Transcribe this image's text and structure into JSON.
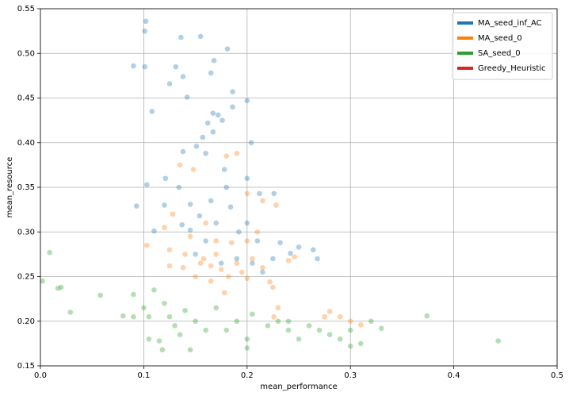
{
  "chart_data": {
    "type": "scatter",
    "x_label": "mean_performance",
    "y_label": "mean_resource",
    "xlim": [
      0,
      0.5
    ],
    "ylim": [
      0.15,
      0.55
    ],
    "xticks": [
      {
        "value": 0,
        "label": "0.0"
      },
      0.1,
      0.2,
      0.3,
      0.4,
      0.5
    ],
    "yticks": [
      0.15,
      {
        "value": 0.2,
        "label": "0.20"
      },
      0.25,
      {
        "value": 0.3,
        "label": "0.30"
      },
      0.35,
      {
        "value": 0.4,
        "label": "0.40"
      },
      0.45,
      {
        "value": 0.5,
        "label": "0.50"
      },
      0.55
    ],
    "grid": true,
    "legend": "upper right",
    "series": [
      {
        "name": "MA_seed_inf_AC",
        "color": "#1f77b4",
        "x": [
          0.102,
          0.101,
          0.136,
          0.155,
          0.181,
          0.168,
          0.09,
          0.101,
          0.131,
          0.125,
          0.138,
          0.165,
          0.186,
          0.142,
          0.108,
          0.2,
          0.167,
          0.172,
          0.186,
          0.162,
          0.176,
          0.167,
          0.151,
          0.157,
          0.204,
          0.138,
          0.16,
          0.178,
          0.121,
          0.134,
          0.103,
          0.093,
          0.2,
          0.212,
          0.226,
          0.145,
          0.165,
          0.184,
          0.12,
          0.11,
          0.154,
          0.17,
          0.192,
          0.21,
          0.232,
          0.25,
          0.264,
          0.268,
          0.242,
          0.225,
          0.205,
          0.16,
          0.145,
          0.175,
          0.19,
          0.215,
          0.137,
          0.15,
          0.2,
          0.18
        ],
        "values": [
          0.536,
          0.525,
          0.518,
          0.519,
          0.505,
          0.492,
          0.486,
          0.485,
          0.485,
          0.466,
          0.474,
          0.478,
          0.457,
          0.451,
          0.435,
          0.447,
          0.433,
          0.431,
          0.44,
          0.422,
          0.425,
          0.412,
          0.396,
          0.406,
          0.4,
          0.39,
          0.388,
          0.37,
          0.36,
          0.35,
          0.353,
          0.329,
          0.36,
          0.343,
          0.343,
          0.331,
          0.335,
          0.328,
          0.33,
          0.301,
          0.318,
          0.31,
          0.3,
          0.29,
          0.288,
          0.283,
          0.28,
          0.27,
          0.276,
          0.27,
          0.265,
          0.29,
          0.302,
          0.265,
          0.27,
          0.255,
          0.308,
          0.275,
          0.31,
          0.35
        ]
      },
      {
        "name": "MA_seed_0",
        "color": "#ff7f0e",
        "x": [
          0.135,
          0.148,
          0.18,
          0.19,
          0.2,
          0.215,
          0.228,
          0.128,
          0.16,
          0.145,
          0.17,
          0.185,
          0.2,
          0.125,
          0.103,
          0.14,
          0.158,
          0.165,
          0.175,
          0.19,
          0.205,
          0.125,
          0.138,
          0.15,
          0.165,
          0.182,
          0.2,
          0.215,
          0.222,
          0.24,
          0.246,
          0.225,
          0.155,
          0.17,
          0.195,
          0.275,
          0.28,
          0.29,
          0.3,
          0.31,
          0.226,
          0.23,
          0.12,
          0.21,
          0.178
        ],
        "values": [
          0.375,
          0.37,
          0.385,
          0.388,
          0.343,
          0.335,
          0.33,
          0.32,
          0.31,
          0.295,
          0.29,
          0.288,
          0.29,
          0.28,
          0.285,
          0.275,
          0.27,
          0.262,
          0.258,
          0.265,
          0.27,
          0.262,
          0.26,
          0.25,
          0.245,
          0.25,
          0.248,
          0.26,
          0.244,
          0.268,
          0.272,
          0.238,
          0.265,
          0.275,
          0.255,
          0.205,
          0.211,
          0.205,
          0.2,
          0.196,
          0.205,
          0.215,
          0.305,
          0.3,
          0.232
        ]
      },
      {
        "name": "SA_seed_0",
        "color": "#2ca02c",
        "x": [
          0.002,
          0.009,
          0.017,
          0.02,
          0.029,
          0.058,
          0.08,
          0.09,
          0.09,
          0.1,
          0.105,
          0.11,
          0.12,
          0.125,
          0.13,
          0.14,
          0.15,
          0.105,
          0.115,
          0.118,
          0.135,
          0.145,
          0.16,
          0.17,
          0.18,
          0.19,
          0.2,
          0.205,
          0.22,
          0.23,
          0.24,
          0.25,
          0.26,
          0.27,
          0.28,
          0.29,
          0.3,
          0.31,
          0.32,
          0.33,
          0.374,
          0.443,
          0.2,
          0.24,
          0.3
        ],
        "values": [
          0.245,
          0.277,
          0.237,
          0.238,
          0.21,
          0.229,
          0.206,
          0.205,
          0.23,
          0.215,
          0.205,
          0.235,
          0.22,
          0.205,
          0.195,
          0.212,
          0.2,
          0.18,
          0.178,
          0.168,
          0.185,
          0.168,
          0.19,
          0.215,
          0.19,
          0.2,
          0.17,
          0.208,
          0.195,
          0.2,
          0.19,
          0.18,
          0.195,
          0.19,
          0.185,
          0.18,
          0.172,
          0.175,
          0.2,
          0.192,
          0.206,
          0.178,
          0.18,
          0.2,
          0.19
        ]
      },
      {
        "name": "Greedy_Heuristic",
        "color": "#d62728",
        "x": [],
        "values": []
      }
    ]
  }
}
